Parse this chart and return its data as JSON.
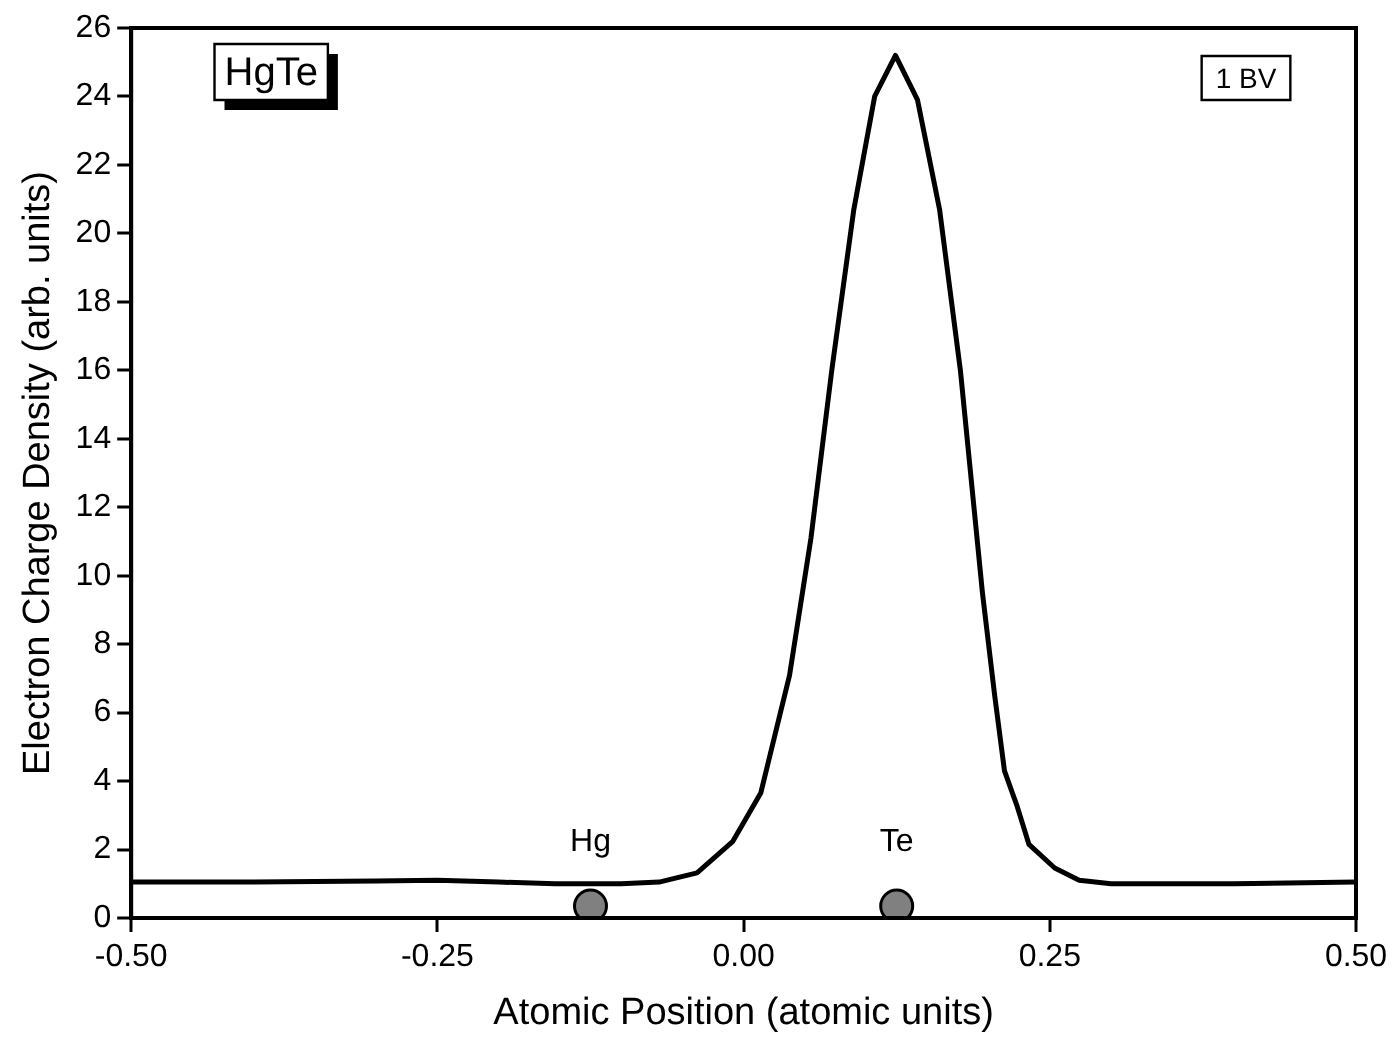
{
  "chart_data": {
    "type": "line",
    "xlabel": "Atomic Position (atomic units)",
    "ylabel": "Electron Charge Density (arb. units)",
    "xlim": [
      -0.5,
      0.5
    ],
    "xticks": [
      {
        "value": -0.5,
        "label": "-0.50"
      },
      {
        "value": -0.25,
        "label": "-0.25"
      },
      {
        "value": 0,
        "label": "0.00"
      },
      {
        "value": 0.25,
        "label": "0.25"
      },
      {
        "value": 0.5,
        "label": "0.50"
      }
    ],
    "ylim": [
      0,
      26
    ],
    "yticks": [
      0,
      2,
      4,
      6,
      8,
      10,
      12,
      14,
      16,
      18,
      20,
      22,
      24,
      26
    ],
    "grid": false,
    "legend": false,
    "marker": "none",
    "line_style": "solid",
    "series": [
      {
        "color": "#000000",
        "x": [
          -0.5,
          -0.4,
          -0.3,
          -0.25,
          -0.2,
          -0.154,
          -0.1,
          -0.069,
          -0.038,
          -0.009,
          0.014,
          0.0375,
          0.055,
          0.072,
          0.09,
          0.107,
          0.124,
          0.142,
          0.16,
          0.177,
          0.195,
          0.205,
          0.213,
          0.223,
          0.233,
          0.254,
          0.274,
          0.3,
          0.4,
          0.5
        ],
        "values": [
          1.05,
          1.05,
          1.08,
          1.1,
          1.05,
          1.0,
          1.0,
          1.05,
          1.32,
          2.23,
          3.65,
          7.09,
          11.1,
          16.0,
          20.7,
          24.0,
          25.2,
          23.9,
          20.7,
          16.0,
          9.5,
          6.5,
          4.3,
          3.3,
          2.15,
          1.46,
          1.1,
          1.0,
          1.0,
          1.05
        ]
      },
      {
        "type": "scatter",
        "marker": "circle",
        "color": "#808080",
        "x": [
          -0.125,
          0.125
        ],
        "values": [
          0.35,
          0.35
        ]
      }
    ],
    "annotations": [
      {
        "text": "Hg",
        "x": -0.125,
        "y": 0.35
      },
      {
        "text": "Te",
        "x": 0.125,
        "y": 0.35
      },
      "HgTe",
      "1 BV"
    ]
  }
}
